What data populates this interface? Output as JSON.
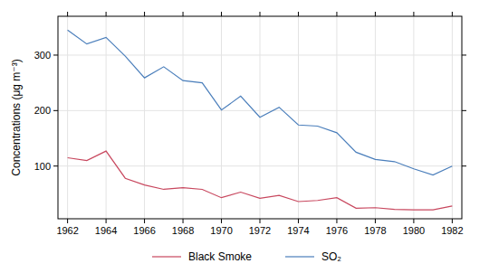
{
  "chart_data": {
    "type": "line",
    "y_label": "Concentrations (μg m⁻³)",
    "x": [
      1962,
      1963,
      1964,
      1965,
      1966,
      1967,
      1968,
      1969,
      1970,
      1971,
      1972,
      1973,
      1974,
      1975,
      1976,
      1977,
      1978,
      1979,
      1980,
      1981,
      1982
    ],
    "series": [
      {
        "name": "Black Smoke",
        "color": "#c8475e",
        "values": [
          115,
          110,
          127,
          78,
          66,
          58,
          61,
          58,
          43,
          53,
          42,
          47,
          36,
          38,
          43,
          24,
          25,
          22,
          21,
          21,
          28
        ]
      },
      {
        "name": "SO₂",
        "color": "#4a7ebb",
        "values": [
          345,
          320,
          332,
          298,
          259,
          279,
          254,
          250,
          201,
          226,
          188,
          206,
          174,
          172,
          160,
          125,
          112,
          108,
          95,
          84,
          100
        ]
      }
    ],
    "xlim": [
      1961.5,
      1982.5
    ],
    "xticks": [
      1962,
      1964,
      1966,
      1968,
      1970,
      1972,
      1974,
      1976,
      1978,
      1980,
      1982
    ],
    "ylim": [
      5,
      370
    ],
    "yticks": [
      100,
      200,
      300
    ],
    "grid": true,
    "legend": "bottom"
  }
}
